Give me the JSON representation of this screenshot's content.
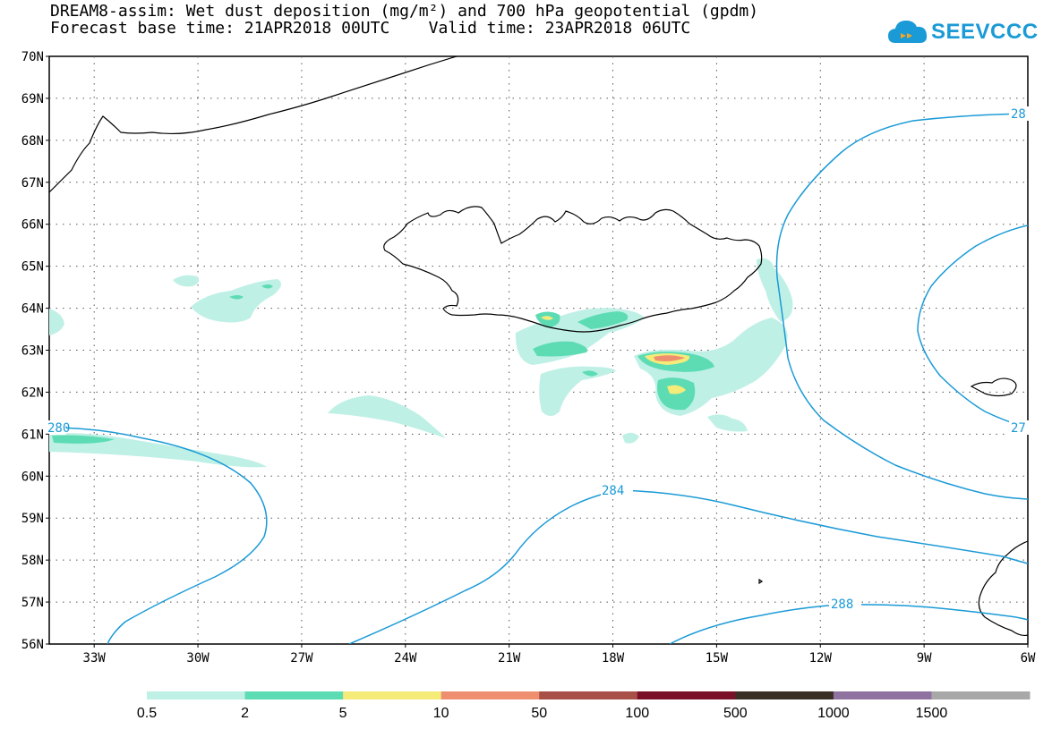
{
  "title": {
    "line1": "DREAM8-assim: Wet dust deposition (mg/m²) and 700 hPa geopotential (gpdm)",
    "line2": "Forecast base time: 21APR2018 00UTC    Valid time: 23APR2018 06UTC"
  },
  "logo": {
    "text": "SEEVCCC",
    "icon": "cloud-icon",
    "color": "#1a9ad6"
  },
  "map": {
    "lat_labels": [
      "70N",
      "69N",
      "68N",
      "67N",
      "66N",
      "65N",
      "64N",
      "63N",
      "62N",
      "61N",
      "60N",
      "59N",
      "58N",
      "57N",
      "56N"
    ],
    "lon_labels": [
      "33W",
      "30W",
      "27W",
      "24W",
      "21W",
      "18W",
      "15W",
      "12W",
      "9W",
      "6W"
    ],
    "lat_range": [
      56,
      70
    ],
    "lon_range": [
      -34.3,
      -6
    ],
    "grid": "dotted",
    "contour_color": "#1a9ad6",
    "contour_labels": [
      "280",
      "284",
      "288",
      "28",
      "27"
    ]
  },
  "colorbar": {
    "labels": [
      "0.5",
      "2",
      "5",
      "10",
      "50",
      "100",
      "500",
      "1000",
      "1500"
    ],
    "colors": [
      "#bff0e6",
      "#5ddcb4",
      "#f5eb78",
      "#ee9070",
      "#a85048",
      "#7a0f28",
      "#3a2f25",
      "#9072a0",
      "#a8a8a8"
    ]
  },
  "dust_colors": {
    "low": "#bff0e6",
    "mid": "#5ddcb4",
    "high": "#f5eb78",
    "top": "#ee9070",
    "max": "#a85048"
  }
}
